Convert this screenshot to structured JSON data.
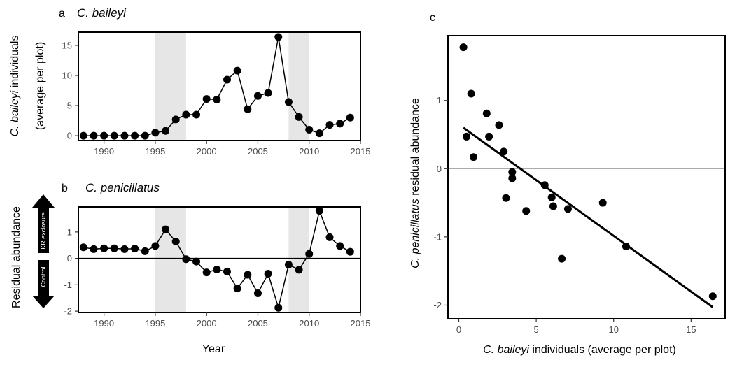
{
  "panels": {
    "a": {
      "letter": "a",
      "title": "C. baileyi",
      "ylabel_italic": "C. baileyi",
      "ylabel_rest": " individuals",
      "ylabel_line2": "(average per plot)"
    },
    "b": {
      "letter": "b",
      "title": "C. penicillatus",
      "ylabel": "Residual abundance",
      "arrow_up_label": "KR exclosure",
      "arrow_down_label": "Control"
    },
    "c": {
      "letter": "c",
      "ylabel_italic": "C. penicillatus",
      "ylabel_rest": " residual abundance",
      "xlabel_italic": "C. baileyi",
      "xlabel_rest": " individuals (average per plot)"
    },
    "shared_xlabel": "Year"
  },
  "colors": {
    "points": "#000000",
    "shade": "#e6e6e6",
    "refline": "#aaaaaa",
    "tick_text": "#4d4d4d"
  },
  "chart_data": [
    {
      "id": "a",
      "type": "line",
      "xlim": [
        1987.5,
        2015
      ],
      "ylim": [
        -0.8,
        17.2
      ],
      "xticks": [
        1990,
        1995,
        2000,
        2005,
        2010,
        2015
      ],
      "yticks": [
        0,
        5,
        10,
        15
      ],
      "shaded_periods": [
        [
          1995,
          1998
        ],
        [
          2008,
          2010
        ]
      ],
      "x": [
        1988,
        1989,
        1990,
        1991,
        1992,
        1993,
        1994,
        1995,
        1996,
        1997,
        1998,
        1999,
        2000,
        2001,
        2002,
        2003,
        2004,
        2005,
        2006,
        2007,
        2008,
        2009,
        2010,
        2011,
        2012,
        2013,
        2014
      ],
      "y": [
        0,
        0,
        0,
        0,
        0,
        0,
        0,
        0.5,
        0.8,
        2.7,
        3.5,
        3.5,
        6.1,
        6.0,
        9.3,
        10.8,
        4.4,
        6.6,
        7.1,
        16.4,
        5.6,
        3.1,
        1.0,
        0.4,
        1.8,
        2.0,
        3.0
      ]
    },
    {
      "id": "b",
      "type": "line",
      "xlim": [
        1987.5,
        2015
      ],
      "ylim": [
        -2.05,
        1.95
      ],
      "xticks": [
        1990,
        1995,
        2000,
        2005,
        2010,
        2015
      ],
      "yticks": [
        -2,
        -1,
        0,
        1
      ],
      "hline": 0,
      "shaded_periods": [
        [
          1995,
          1998
        ],
        [
          2008,
          2010
        ]
      ],
      "x": [
        1988,
        1989,
        1990,
        1991,
        1992,
        1993,
        1994,
        1995,
        1996,
        1997,
        1998,
        1999,
        2000,
        2001,
        2002,
        2003,
        2004,
        2005,
        2006,
        2007,
        2008,
        2009,
        2010,
        2011,
        2012,
        2013,
        2014
      ],
      "y": [
        0.42,
        0.35,
        0.38,
        0.38,
        0.35,
        0.37,
        0.27,
        0.47,
        1.1,
        0.64,
        -0.03,
        -0.12,
        -0.53,
        -0.42,
        -0.5,
        -1.14,
        -0.62,
        -1.32,
        -0.58,
        -1.87,
        -0.24,
        -0.43,
        0.17,
        1.8,
        0.8,
        0.47,
        0.25
      ]
    },
    {
      "id": "c",
      "type": "scatter",
      "xlim": [
        -0.7,
        17.2
      ],
      "ylim": [
        -2.2,
        1.95
      ],
      "xticks": [
        0,
        5,
        10,
        15
      ],
      "yticks": [
        -2,
        -1,
        0,
        1
      ],
      "hline": 0,
      "points": [
        [
          0.3,
          1.78
        ],
        [
          0.5,
          0.47
        ],
        [
          0.8,
          1.1
        ],
        [
          0.95,
          0.17
        ],
        [
          1.8,
          0.81
        ],
        [
          1.95,
          0.47
        ],
        [
          2.6,
          0.64
        ],
        [
          2.9,
          0.25
        ],
        [
          3.05,
          -0.43
        ],
        [
          3.45,
          -0.05
        ],
        [
          3.45,
          -0.14
        ],
        [
          4.35,
          -0.62
        ],
        [
          5.55,
          -0.24
        ],
        [
          6.0,
          -0.42
        ],
        [
          6.1,
          -0.55
        ],
        [
          6.65,
          -1.32
        ],
        [
          7.05,
          -0.59
        ],
        [
          9.3,
          -0.5
        ],
        [
          10.8,
          -1.14
        ],
        [
          16.4,
          -1.87
        ]
      ],
      "fit_line": [
        [
          0.3,
          0.6
        ],
        [
          16.4,
          -2.03
        ]
      ]
    }
  ]
}
